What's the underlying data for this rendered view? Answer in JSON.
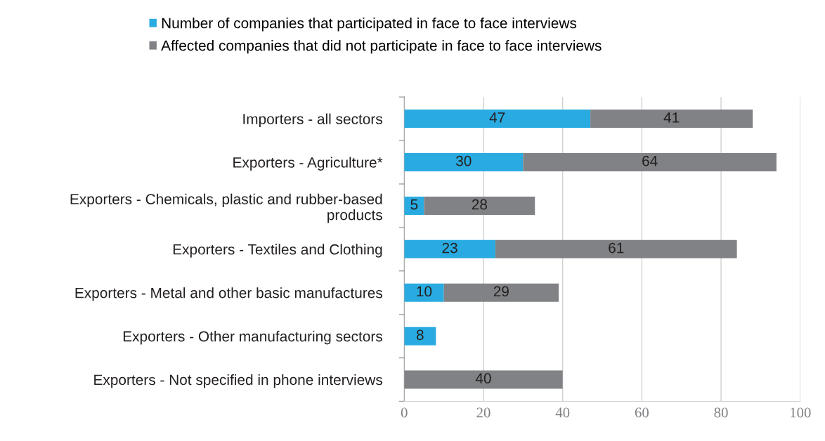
{
  "chart_data": {
    "type": "bar",
    "orientation": "horizontal",
    "stacked": true,
    "categories": [
      "Importers - all sectors",
      "Exporters - Agriculture*",
      "Exporters - Chemicals, plastic and rubber-based products",
      "Exporters - Textiles and Clothing",
      "Exporters - Metal and other basic manufactures",
      "Exporters - Other manufacturing sectors",
      "Exporters - Not specified in phone interviews"
    ],
    "series": [
      {
        "name": "Number of companies that participated in face to face interviews",
        "color": "#29abe2",
        "values": [
          47,
          30,
          5,
          23,
          10,
          8,
          null
        ]
      },
      {
        "name": "Affected companies that did not participate in face to face interviews",
        "color": "#808285",
        "values": [
          41,
          64,
          28,
          61,
          29,
          null,
          40
        ]
      }
    ],
    "xlim": [
      0,
      100
    ],
    "xticks": [
      0,
      20,
      40,
      60,
      80,
      100
    ],
    "grid": "x",
    "legend": "top",
    "data_labels": true
  }
}
